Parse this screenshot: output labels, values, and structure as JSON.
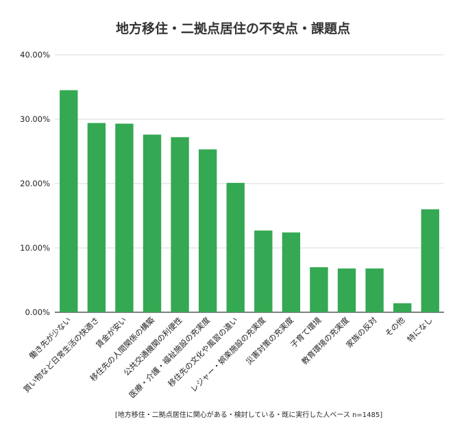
{
  "chart_data": {
    "type": "bar",
    "title": "地方移住・二拠点居住の不安点・課題点",
    "footnote": "[地方移住・二拠点居住に関心がある・検討している・既に実行した人ベース n=1485]",
    "categories": [
      "働き先が少ない",
      "買い物など日常生活の快適さ",
      "賃金が安い",
      "移住先の人間関係の構築",
      "公共交通機関の利便性",
      "医療・介護・福祉施設の充実度",
      "移住先の文化や風習の違い",
      "レジャー・娯楽施設の充実度",
      "災害対策の充実度",
      "子育て環境",
      "教育環境の充実度",
      "家族の反対",
      "その他",
      "特になし"
    ],
    "values": [
      34.5,
      29.4,
      29.3,
      27.6,
      27.2,
      25.3,
      20.1,
      12.7,
      12.4,
      7.0,
      6.8,
      6.8,
      1.4,
      16.0
    ],
    "ylim": [
      0,
      40
    ],
    "yticks": [
      0,
      10,
      20,
      30,
      40
    ],
    "ytick_labels": [
      "0.00%",
      "10.00%",
      "20.00%",
      "30.00%",
      "40.00%"
    ],
    "bar_color": "#34a853",
    "grid": true,
    "legend": "none"
  }
}
